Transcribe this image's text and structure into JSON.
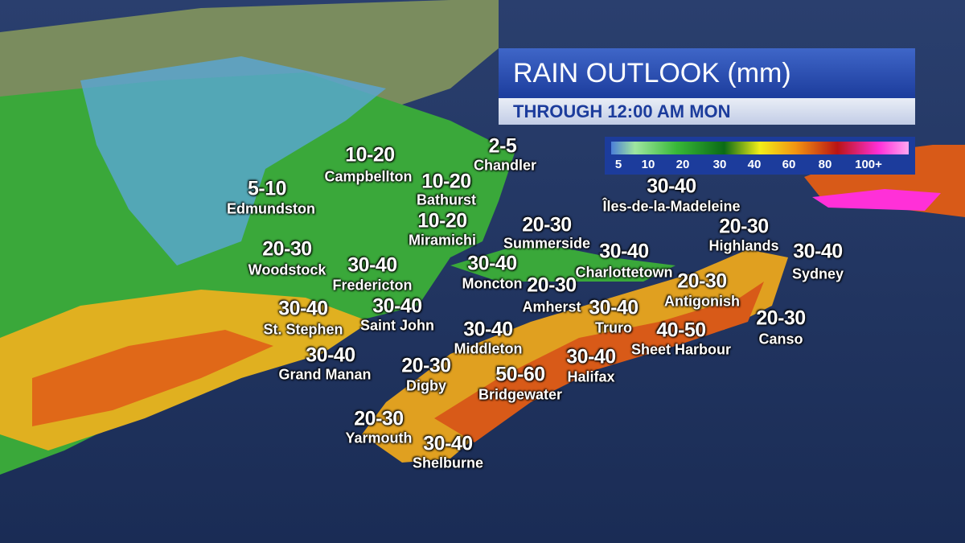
{
  "header": {
    "title": "RAIN OUTLOOK (mm)",
    "subtitle": "THROUGH  12:00 AM MON"
  },
  "legend": {
    "labels": [
      "5",
      "10",
      "20",
      "30",
      "40",
      "60",
      "80",
      "100+"
    ]
  },
  "locations": [
    {
      "name": "Campbellton",
      "amount": "10-20"
    },
    {
      "name": "Chandler",
      "amount": "2-5"
    },
    {
      "name": "Bathurst",
      "amount": "10-20"
    },
    {
      "name": "Edmundston",
      "amount": "5-10"
    },
    {
      "name": "Îles-de-la-Madeleine",
      "amount": "30-40"
    },
    {
      "name": "Miramichi",
      "amount": "10-20"
    },
    {
      "name": "Summerside",
      "amount": "20-30"
    },
    {
      "name": "Highlands",
      "amount": "20-30"
    },
    {
      "name": "Woodstock",
      "amount": "20-30"
    },
    {
      "name": "Charlottetown",
      "amount": "30-40"
    },
    {
      "name": "Sydney",
      "amount": "30-40"
    },
    {
      "name": "Fredericton",
      "amount": "30-40"
    },
    {
      "name": "Moncton",
      "amount": "30-40"
    },
    {
      "name": "Antigonish",
      "amount": "20-30"
    },
    {
      "name": "Amherst",
      "amount": "20-30"
    },
    {
      "name": "St. Stephen",
      "amount": "30-40"
    },
    {
      "name": "Saint John",
      "amount": "30-40"
    },
    {
      "name": "Truro",
      "amount": "30-40"
    },
    {
      "name": "Canso",
      "amount": "20-30"
    },
    {
      "name": "Sheet Harbour",
      "amount": "40-50"
    },
    {
      "name": "Middleton",
      "amount": "30-40"
    },
    {
      "name": "Grand Manan",
      "amount": "30-40"
    },
    {
      "name": "Halifax",
      "amount": "30-40"
    },
    {
      "name": "Digby",
      "amount": "20-30"
    },
    {
      "name": "Bridgewater",
      "amount": "50-60"
    },
    {
      "name": "Yarmouth",
      "amount": "20-30"
    },
    {
      "name": "Shelburne",
      "amount": "30-40"
    }
  ]
}
